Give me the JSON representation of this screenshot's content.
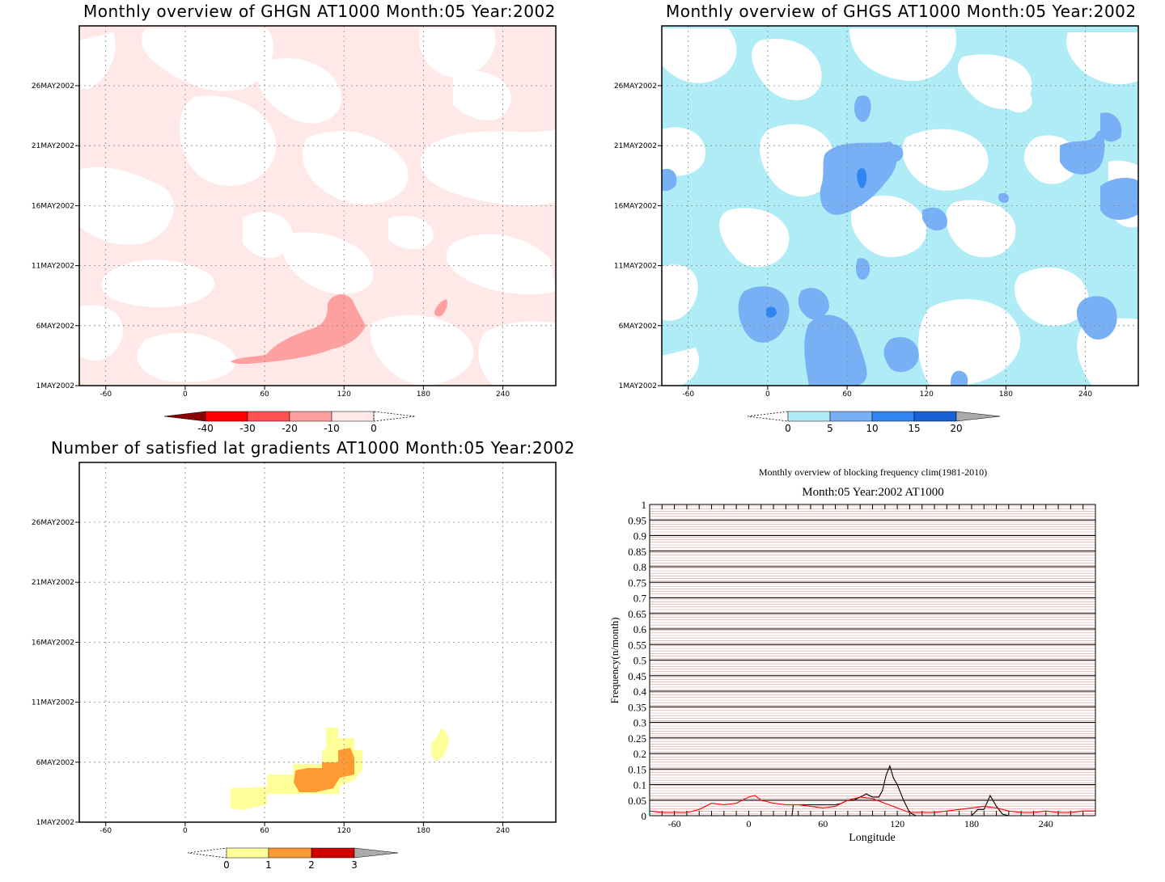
{
  "panels": {
    "ghgn": {
      "title": "Monthly overview of GHGN AT1000 Month:05 Year:2002",
      "colorbar_labels": [
        "-40",
        "-30",
        "-20",
        "-10",
        "0"
      ],
      "colors": {
        "c1": "#8b0000",
        "c2": "#ff0000",
        "c3": "#ff5050",
        "c4": "#ffa0a0",
        "c5": "#ffe8e8"
      }
    },
    "ghgs": {
      "title": "Monthly overview of GHGS AT1000 Month:05 Year:2002",
      "colorbar_labels": [
        "0",
        "5",
        "10",
        "15",
        "20"
      ],
      "colors": {
        "c1": "#b0ecf6",
        "c2": "#78b0f5",
        "c3": "#2f86f2",
        "c4": "#1960d8",
        "over": "#aaaaaa"
      }
    },
    "gradients": {
      "title": "Number of satisfied lat gradients AT1000 Month:05 Year:2002",
      "colorbar_labels": [
        "0",
        "1",
        "2",
        "3"
      ],
      "colors": {
        "c1": "#ffff99",
        "c2": "#ff9933",
        "c3": "#cc0000",
        "over": "#aaaaaa"
      }
    },
    "frequency": {
      "title": "Monthly overview of blocking frequency clim(1981-2010)",
      "subtitle": "Month:05 Year:2002  AT1000"
    }
  },
  "map_axes": {
    "x_ticks": [
      "-60",
      "0",
      "60",
      "120",
      "180",
      "240"
    ],
    "y_ticks": [
      "1MAY2002",
      "6MAY2002",
      "11MAY2002",
      "16MAY2002",
      "21MAY2002",
      "26MAY2002"
    ]
  },
  "chart_data": [
    {
      "type": "line",
      "title": "Monthly overview of blocking frequency clim(1981-2010)",
      "subtitle": "Month:05 Year:2002  AT1000",
      "xlabel": "Longitude",
      "ylabel": "Frequency(n/month)",
      "xlim": [
        -80,
        280
      ],
      "ylim": [
        0,
        1
      ],
      "x_ticks": [
        "-60",
        "0",
        "60",
        "120",
        "180",
        "240"
      ],
      "y_ticks": [
        "0",
        "0.05",
        "0.1",
        "0.15",
        "0.2",
        "0.25",
        "0.3",
        "0.35",
        "0.4",
        "0.45",
        "0.5",
        "0.55",
        "0.6",
        "0.65",
        "0.7",
        "0.75",
        "0.8",
        "0.85",
        "0.9",
        "0.95",
        "1"
      ],
      "grid": true,
      "series": [
        {
          "color": "#000000",
          "x": [
            35,
            36,
            45,
            60,
            70,
            75,
            80,
            85,
            90,
            95,
            100,
            105,
            108,
            111,
            114,
            117,
            120,
            125,
            130,
            135,
            180,
            185,
            190,
            195,
            200,
            205,
            210
          ],
          "y": [
            0,
            0.035,
            0.035,
            0.035,
            0.035,
            0.04,
            0.05,
            0.05,
            0.06,
            0.07,
            0.06,
            0.06,
            0.08,
            0.13,
            0.16,
            0.12,
            0.1,
            0.05,
            0.01,
            0,
            0,
            0.02,
            0.02,
            0.065,
            0.03,
            0.005,
            0
          ]
        },
        {
          "color": "#ff0000",
          "x": [
            -80,
            -70,
            -50,
            -40,
            -30,
            -20,
            -10,
            0,
            5,
            10,
            20,
            30,
            40,
            50,
            60,
            70,
            80,
            90,
            100,
            110,
            120,
            130,
            140,
            150,
            160,
            170,
            180,
            190,
            200,
            210,
            220,
            230,
            240,
            250,
            260,
            270,
            280
          ],
          "y": [
            0.015,
            0.01,
            0.01,
            0.02,
            0.04,
            0.035,
            0.04,
            0.06,
            0.065,
            0.05,
            0.04,
            0.035,
            0.035,
            0.03,
            0.025,
            0.03,
            0.05,
            0.06,
            0.055,
            0.04,
            0.025,
            0.01,
            0.01,
            0.01,
            0.015,
            0.02,
            0.025,
            0.03,
            0.025,
            0.015,
            0.01,
            0.01,
            0.015,
            0.01,
            0.01,
            0.015,
            0.015
          ]
        }
      ]
    }
  ]
}
